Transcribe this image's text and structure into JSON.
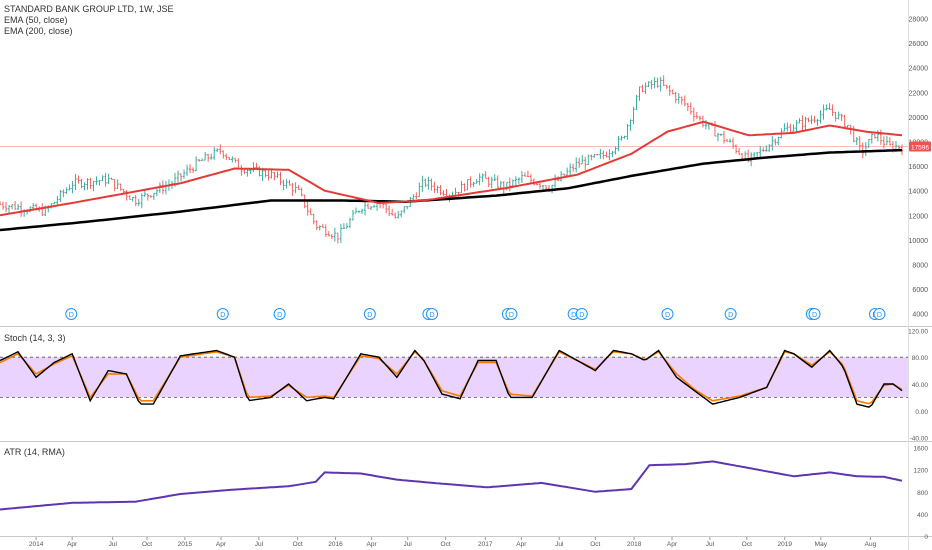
{
  "header": {
    "symbol_label": "STANDARD BANK GROUP LTD, 1W, JSE",
    "ema50_label": "EMA (50, close)",
    "ema200_label": "EMA (200, close)",
    "stoch_label": "Stoch (14, 3, 3)",
    "atr_label": "ATR (14, RMA)"
  },
  "colors": {
    "up": "#26a69a",
    "down": "#ef5350",
    "ema50": "#e53935",
    "ema200": "#000000",
    "stoch_k": "#000000",
    "stoch_d": "#f57c00",
    "stoch_band": "#e6ccff",
    "atr": "#5e35b1",
    "dividend": "#2196f3",
    "last_price_line": "#f4c2b0"
  },
  "chart_data": [
    {
      "type": "candlestick",
      "panel": "price",
      "title": "STANDARD BANK GROUP LTD, 1W, JSE",
      "ylim": [
        3000,
        29500
      ],
      "y_ticks": [
        4000,
        6000,
        8000,
        10000,
        12000,
        14000,
        16000,
        18000,
        20000,
        22000,
        24000,
        26000,
        28000
      ],
      "last_price": "17596",
      "x_ticks": [
        "2014",
        "Apr",
        "Jul",
        "Oct",
        "2015",
        "Apr",
        "Jul",
        "Oct",
        "2016",
        "Apr",
        "Jul",
        "Oct",
        "2017",
        "Apr",
        "Jul",
        "Oct",
        "2018",
        "Apr",
        "Jul",
        "Oct",
        "2019",
        "May",
        "Aug"
      ],
      "price_keypoints": [
        [
          0,
          12900
        ],
        [
          0.05,
          12300
        ],
        [
          0.08,
          14600
        ],
        [
          0.12,
          14900
        ],
        [
          0.15,
          13200
        ],
        [
          0.19,
          14600
        ],
        [
          0.22,
          16300
        ],
        [
          0.245,
          17300
        ],
        [
          0.265,
          15900
        ],
        [
          0.3,
          15300
        ],
        [
          0.33,
          14000
        ],
        [
          0.35,
          11200
        ],
        [
          0.375,
          10300
        ],
        [
          0.4,
          12700
        ],
        [
          0.42,
          13100
        ],
        [
          0.44,
          11700
        ],
        [
          0.47,
          14700
        ],
        [
          0.5,
          13700
        ],
        [
          0.53,
          15100
        ],
        [
          0.56,
          14300
        ],
        [
          0.58,
          15100
        ],
        [
          0.61,
          14300
        ],
        [
          0.64,
          16200
        ],
        [
          0.67,
          16900
        ],
        [
          0.69,
          18200
        ],
        [
          0.71,
          22300
        ],
        [
          0.73,
          22800
        ],
        [
          0.76,
          21000
        ],
        [
          0.78,
          19500
        ],
        [
          0.81,
          17800
        ],
        [
          0.83,
          16400
        ],
        [
          0.85,
          17600
        ],
        [
          0.87,
          19000
        ],
        [
          0.9,
          19800
        ],
        [
          0.92,
          20600
        ],
        [
          0.94,
          19300
        ],
        [
          0.955,
          17100
        ],
        [
          0.97,
          18600
        ],
        [
          0.985,
          17600
        ],
        [
          1.0,
          17600
        ]
      ],
      "ema50_keypoints": [
        [
          0,
          12000
        ],
        [
          0.08,
          13000
        ],
        [
          0.2,
          14600
        ],
        [
          0.26,
          15800
        ],
        [
          0.32,
          15700
        ],
        [
          0.36,
          14000
        ],
        [
          0.42,
          13000
        ],
        [
          0.47,
          13200
        ],
        [
          0.56,
          14200
        ],
        [
          0.64,
          15300
        ],
        [
          0.7,
          17000
        ],
        [
          0.74,
          18800
        ],
        [
          0.78,
          19600
        ],
        [
          0.83,
          18500
        ],
        [
          0.88,
          18700
        ],
        [
          0.92,
          19300
        ],
        [
          0.96,
          18800
        ],
        [
          1.0,
          18500
        ]
      ],
      "ema200_keypoints": [
        [
          0,
          10800
        ],
        [
          0.1,
          11500
        ],
        [
          0.2,
          12300
        ],
        [
          0.3,
          13200
        ],
        [
          0.38,
          13200
        ],
        [
          0.45,
          13100
        ],
        [
          0.55,
          13600
        ],
        [
          0.63,
          14200
        ],
        [
          0.7,
          15200
        ],
        [
          0.78,
          16200
        ],
        [
          0.85,
          16700
        ],
        [
          0.92,
          17100
        ],
        [
          1.0,
          17300
        ]
      ],
      "dividend_markers": [
        [
          0.079
        ],
        [
          0.247
        ],
        [
          0.31
        ],
        [
          0.41
        ],
        [
          0.475
        ],
        [
          0.479
        ],
        [
          0.563
        ],
        [
          0.567
        ],
        [
          0.636
        ],
        [
          0.645
        ],
        [
          0.74
        ],
        [
          0.81
        ],
        [
          0.9
        ],
        [
          0.903
        ],
        [
          0.97
        ],
        [
          0.975
        ]
      ],
      "dividend_label": "D"
    },
    {
      "type": "line",
      "panel": "stoch",
      "title": "Stoch (14, 3, 3)",
      "ylim": [
        -45,
        125
      ],
      "y_ticks": [
        "120.00",
        "80.00",
        "40.00",
        "0.00",
        "-40.00"
      ],
      "y_tick_values": [
        120,
        80,
        40,
        0,
        -40
      ],
      "band": [
        20,
        80
      ],
      "series": [
        {
          "role": "k",
          "keypoints": [
            [
              0,
              75
            ],
            [
              0.02,
              88
            ],
            [
              0.04,
              50
            ],
            [
              0.06,
              72
            ],
            [
              0.08,
              85
            ],
            [
              0.1,
              15
            ],
            [
              0.12,
              60
            ],
            [
              0.14,
              55
            ],
            [
              0.155,
              10
            ],
            [
              0.17,
              10
            ],
            [
              0.2,
              82
            ],
            [
              0.24,
              90
            ],
            [
              0.26,
              80
            ],
            [
              0.275,
              15
            ],
            [
              0.3,
              20
            ],
            [
              0.32,
              40
            ],
            [
              0.34,
              15
            ],
            [
              0.36,
              20
            ],
            [
              0.37,
              18
            ],
            [
              0.4,
              85
            ],
            [
              0.42,
              80
            ],
            [
              0.44,
              50
            ],
            [
              0.46,
              90
            ],
            [
              0.47,
              75
            ],
            [
              0.49,
              25
            ],
            [
              0.51,
              18
            ],
            [
              0.53,
              75
            ],
            [
              0.55,
              75
            ],
            [
              0.565,
              20
            ],
            [
              0.59,
              20
            ],
            [
              0.62,
              90
            ],
            [
              0.64,
              75
            ],
            [
              0.66,
              60
            ],
            [
              0.68,
              90
            ],
            [
              0.7,
              85
            ],
            [
              0.715,
              75
            ],
            [
              0.73,
              90
            ],
            [
              0.75,
              50
            ],
            [
              0.77,
              30
            ],
            [
              0.79,
              10
            ],
            [
              0.82,
              20
            ],
            [
              0.85,
              35
            ],
            [
              0.87,
              90
            ],
            [
              0.88,
              85
            ],
            [
              0.9,
              65
            ],
            [
              0.92,
              90
            ],
            [
              0.935,
              65
            ],
            [
              0.95,
              10
            ],
            [
              0.965,
              5
            ],
            [
              0.98,
              40
            ],
            [
              0.99,
              40
            ],
            [
              1.0,
              30
            ]
          ]
        },
        {
          "role": "d",
          "keypoints": [
            [
              0,
              72
            ],
            [
              0.02,
              85
            ],
            [
              0.04,
              55
            ],
            [
              0.06,
              70
            ],
            [
              0.08,
              82
            ],
            [
              0.1,
              20
            ],
            [
              0.12,
              55
            ],
            [
              0.14,
              55
            ],
            [
              0.155,
              15
            ],
            [
              0.17,
              15
            ],
            [
              0.2,
              80
            ],
            [
              0.24,
              88
            ],
            [
              0.26,
              80
            ],
            [
              0.275,
              20
            ],
            [
              0.3,
              22
            ],
            [
              0.32,
              38
            ],
            [
              0.34,
              20
            ],
            [
              0.36,
              22
            ],
            [
              0.37,
              20
            ],
            [
              0.4,
              82
            ],
            [
              0.42,
              78
            ],
            [
              0.44,
              55
            ],
            [
              0.46,
              88
            ],
            [
              0.47,
              75
            ],
            [
              0.49,
              30
            ],
            [
              0.51,
              22
            ],
            [
              0.53,
              72
            ],
            [
              0.55,
              72
            ],
            [
              0.565,
              25
            ],
            [
              0.59,
              22
            ],
            [
              0.62,
              88
            ],
            [
              0.64,
              75
            ],
            [
              0.66,
              62
            ],
            [
              0.68,
              88
            ],
            [
              0.7,
              85
            ],
            [
              0.715,
              76
            ],
            [
              0.73,
              88
            ],
            [
              0.75,
              55
            ],
            [
              0.77,
              32
            ],
            [
              0.79,
              15
            ],
            [
              0.82,
              22
            ],
            [
              0.85,
              35
            ],
            [
              0.87,
              88
            ],
            [
              0.88,
              85
            ],
            [
              0.9,
              68
            ],
            [
              0.92,
              88
            ],
            [
              0.935,
              68
            ],
            [
              0.95,
              15
            ],
            [
              0.965,
              10
            ],
            [
              0.98,
              38
            ],
            [
              0.99,
              40
            ],
            [
              1.0,
              32
            ]
          ]
        }
      ]
    },
    {
      "type": "line",
      "panel": "atr",
      "title": "ATR (14, RMA)",
      "ylim": [
        0,
        1700
      ],
      "y_ticks": [
        "1600",
        "1200",
        "800",
        "400",
        "0"
      ],
      "y_tick_values": [
        1600,
        1200,
        800,
        400,
        0
      ],
      "series": [
        {
          "role": "atr",
          "keypoints": [
            [
              0,
              480
            ],
            [
              0.08,
              600
            ],
            [
              0.15,
              620
            ],
            [
              0.2,
              760
            ],
            [
              0.26,
              840
            ],
            [
              0.32,
              900
            ],
            [
              0.35,
              980
            ],
            [
              0.36,
              1150
            ],
            [
              0.4,
              1130
            ],
            [
              0.44,
              1020
            ],
            [
              0.48,
              960
            ],
            [
              0.54,
              880
            ],
            [
              0.6,
              960
            ],
            [
              0.66,
              800
            ],
            [
              0.7,
              850
            ],
            [
              0.72,
              1280
            ],
            [
              0.76,
              1300
            ],
            [
              0.79,
              1350
            ],
            [
              0.84,
              1200
            ],
            [
              0.88,
              1080
            ],
            [
              0.92,
              1150
            ],
            [
              0.95,
              1080
            ],
            [
              0.98,
              1070
            ],
            [
              1.0,
              1000
            ]
          ]
        }
      ]
    }
  ]
}
